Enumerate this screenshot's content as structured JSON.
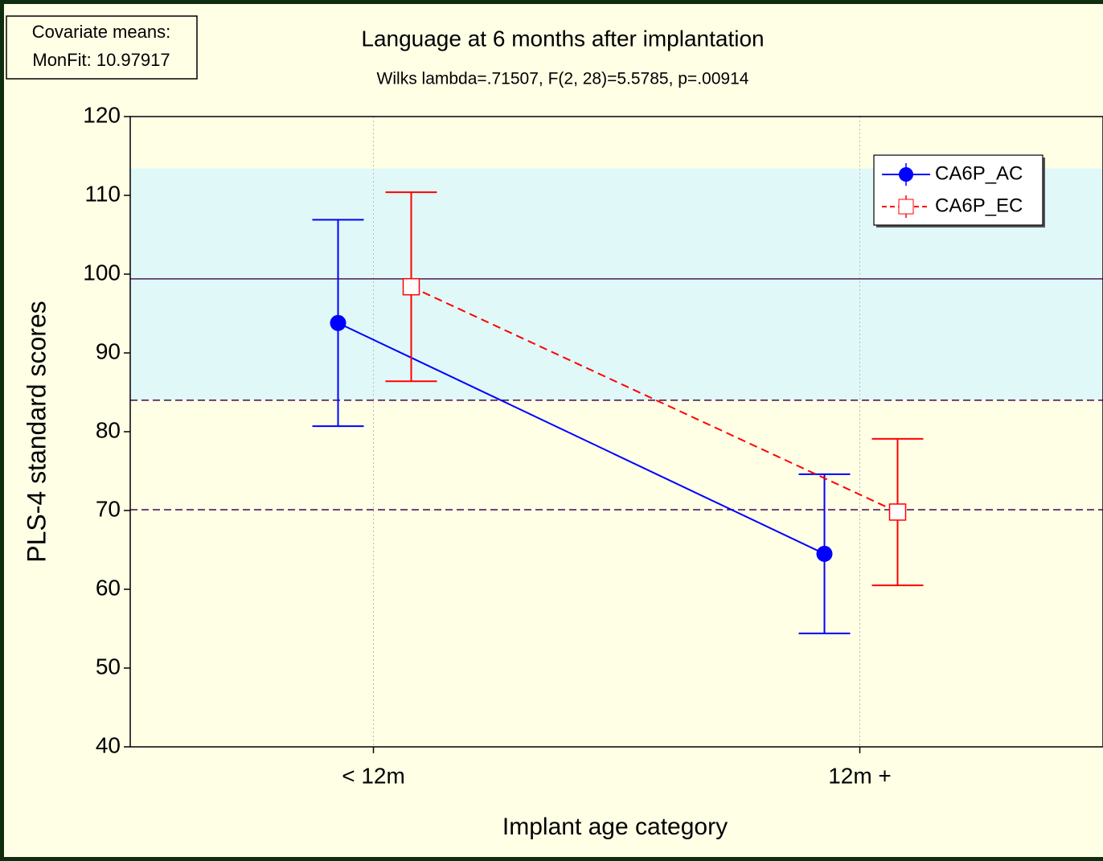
{
  "chart_data": {
    "type": "errorbar_line",
    "title": "Language at 6 months after implantation",
    "subtitle": "Wilks lambda=.71507, F(2, 28)=5.5785, p=.00914",
    "note_lines": [
      "Covariate means:",
      "MonFit: 10.97917"
    ],
    "x_label": "Implant age category",
    "y_label": "PLS-4 standard scores",
    "categories": [
      "< 12m",
      "12m +"
    ],
    "series": [
      {
        "name": "CA6P_AC",
        "color": "#0000ff",
        "marker": "circle",
        "dashed": false,
        "values": [
          93.8,
          64.5
        ],
        "errors": [
          13.1,
          10.1
        ]
      },
      {
        "name": "CA6P_EC",
        "color": "#ff0000",
        "marker": "square",
        "dashed": true,
        "values": [
          98.4,
          69.8
        ],
        "errors": [
          12,
          9.3
        ]
      }
    ],
    "reference_band": [
      84,
      113.4
    ],
    "reference_lines": [
      {
        "value": 99.4,
        "dashed": false
      },
      {
        "value": 84,
        "dashed": true
      },
      {
        "value": 70.1,
        "dashed": true
      }
    ],
    "ylim": [
      40,
      120
    ],
    "yticks": [
      40,
      50,
      60,
      70,
      80,
      90,
      100,
      110,
      120
    ],
    "legend": "top-right",
    "grid": true
  }
}
